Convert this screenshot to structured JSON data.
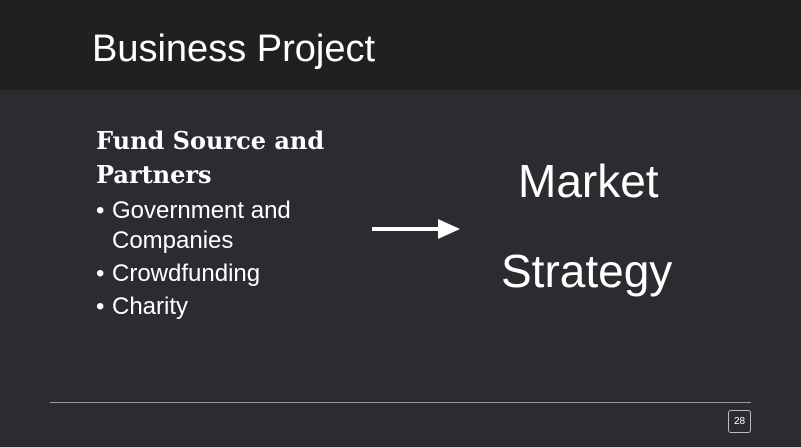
{
  "slide": {
    "title": "Business Project",
    "heading": "Fund Source and Partners",
    "bullet_symbol": "•",
    "bullets": [
      "Government  and Companies",
      "Crowdfunding",
      "Charity"
    ],
    "arrow_icon": "right-arrow-icon",
    "big_text_line1": "Market",
    "big_text_line2": "Strategy",
    "page_number": "28"
  },
  "colors": {
    "background": "#2b2c2f",
    "title_bar": "#202020",
    "text": "#ffffff",
    "divider": "#9a9a9a"
  }
}
